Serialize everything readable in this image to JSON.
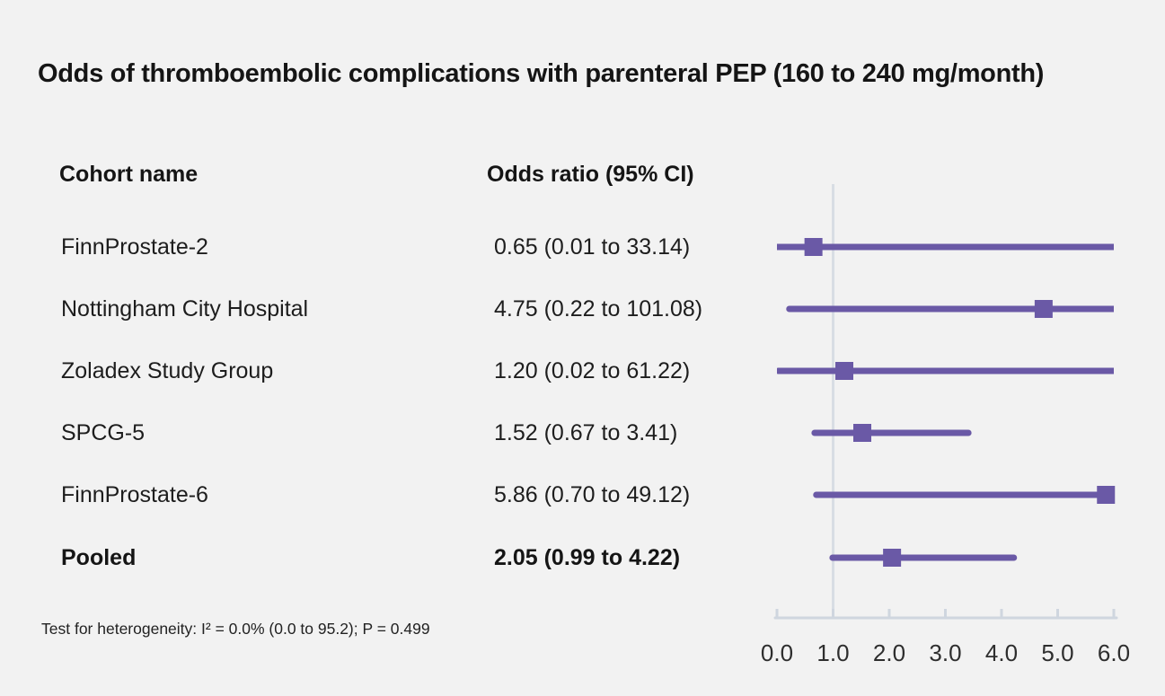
{
  "title": "Odds of thromboembolic complications with parenteral PEP (160 to 240 mg/month)",
  "table": {
    "col1_header": "Cohort name",
    "col2_header": "Odds ratio (95% CI)"
  },
  "footnote": "Test for heterogeneity: I² = 0.0% (0.0 to 95.2); P = 0.499",
  "chart_data": {
    "type": "forest",
    "title": "Odds of thromboembolic complications with parenteral PEP (160 to 240 mg/month)",
    "xlim": [
      0,
      6
    ],
    "xlabel_ticks": [
      "0.0",
      "1.0",
      "2.0",
      "3.0",
      "4.0",
      "5.0",
      "6.0"
    ],
    "tick_values": [
      0,
      1,
      2,
      3,
      4,
      5,
      6
    ],
    "reference_line": 1.0,
    "grid": false,
    "rows": [
      {
        "label": "FinnProstate-2",
        "or_text": "0.65 (0.01 to 33.14)",
        "or": 0.65,
        "ci_low": 0.01,
        "ci_high": 33.14,
        "bold": false
      },
      {
        "label": "Nottingham City Hospital",
        "or_text": "4.75 (0.22 to 101.08)",
        "or": 4.75,
        "ci_low": 0.22,
        "ci_high": 101.08,
        "bold": false
      },
      {
        "label": "Zoladex Study Group",
        "or_text": "1.20 (0.02 to 61.22)",
        "or": 1.2,
        "ci_low": 0.02,
        "ci_high": 61.22,
        "bold": false
      },
      {
        "label": "SPCG-5",
        "or_text": "1.52 (0.67 to 3.41)",
        "or": 1.52,
        "ci_low": 0.67,
        "ci_high": 3.41,
        "bold": false
      },
      {
        "label": "FinnProstate-6",
        "or_text": "5.86 (0.70 to 49.12)",
        "or": 5.86,
        "ci_low": 0.7,
        "ci_high": 49.12,
        "bold": false
      },
      {
        "label": "Pooled",
        "or_text": "2.05 (0.99 to 4.22)",
        "or": 2.05,
        "ci_low": 0.99,
        "ci_high": 4.22,
        "bold": true
      }
    ],
    "colors": {
      "marker": "#6a59a6",
      "ci_line": "#6a59a6",
      "reference_line": "#d8dde4",
      "axis": "#cfd6df",
      "background": "#f2f2f2",
      "text": "#1d1d1d"
    }
  }
}
